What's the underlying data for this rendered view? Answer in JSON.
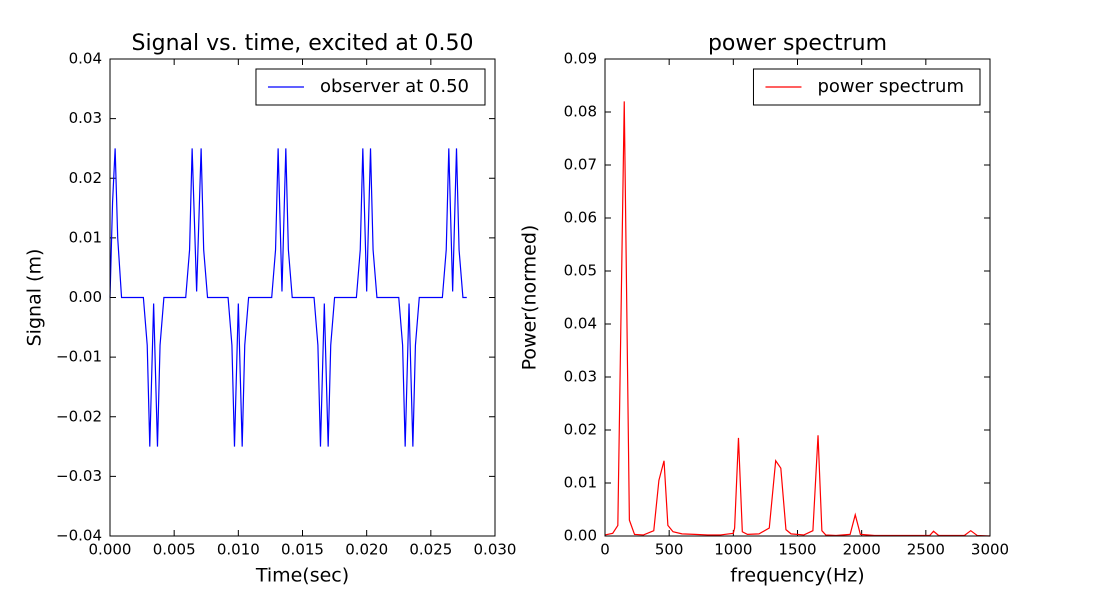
{
  "chart_data": [
    {
      "type": "line",
      "title": "Signal vs. time, excited at 0.50",
      "xlabel": "Time(sec)",
      "ylabel": "Signal (m)",
      "x": [
        0,
        0.0002,
        0.0004,
        0.0006,
        0.0009,
        0.0026,
        0.0029,
        0.0031,
        0.0034,
        0.0037,
        0.0039,
        0.0042,
        0.0059,
        0.0062,
        0.0064,
        0.00675,
        0.0071,
        0.0073,
        0.0076,
        0.0092,
        0.0095,
        0.0097,
        0.01,
        0.0103,
        0.0105,
        0.0108,
        0.0126,
        0.0129,
        0.0131,
        0.0134,
        0.0137,
        0.0139,
        0.0142,
        0.0159,
        0.0162,
        0.0164,
        0.0167,
        0.017,
        0.0172,
        0.0175,
        0.0192,
        0.0195,
        0.0197,
        0.02,
        0.0203,
        0.0205,
        0.0208,
        0.0225,
        0.0228,
        0.023,
        0.0233,
        0.0236,
        0.0238,
        0.0241,
        0.0259,
        0.0262,
        0.0264,
        0.0267,
        0.027,
        0.0272,
        0.0275,
        0.0278
      ],
      "series": [
        {
          "name": "observer at 0.50",
          "color": "#0000ff",
          "values": [
            0,
            0.016,
            0.025,
            0.01,
            0,
            0,
            -0.008,
            -0.025,
            -0.001,
            -0.025,
            -0.008,
            0,
            0,
            0.008,
            0.025,
            0.001,
            0.025,
            0.008,
            0,
            0,
            -0.008,
            -0.025,
            -0.001,
            -0.025,
            -0.008,
            0,
            0,
            0.008,
            0.025,
            0.001,
            0.025,
            0.008,
            0,
            0,
            -0.008,
            -0.025,
            -0.001,
            -0.025,
            -0.008,
            0,
            0,
            0.008,
            0.025,
            0.001,
            0.025,
            0.008,
            0,
            0,
            -0.008,
            -0.025,
            -0.001,
            -0.025,
            -0.008,
            0,
            0,
            0.008,
            0.025,
            0.001,
            0.025,
            0.008,
            0,
            0
          ]
        }
      ],
      "xlim": [
        0,
        0.03
      ],
      "xticks": [
        {
          "value": 0,
          "label": "0.000"
        },
        {
          "value": 0.005,
          "label": "0.005"
        },
        {
          "value": 0.01,
          "label": "0.010"
        },
        {
          "value": 0.015,
          "label": "0.015"
        },
        {
          "value": 0.02,
          "label": "0.020"
        },
        {
          "value": 0.025,
          "label": "0.025"
        },
        {
          "value": 0.03,
          "label": "0.030"
        }
      ],
      "ylim": [
        -0.04,
        0.04
      ],
      "yticks": [
        {
          "value": -0.04,
          "label": "−0.04"
        },
        {
          "value": -0.03,
          "label": "−0.03"
        },
        {
          "value": -0.02,
          "label": "−0.02"
        },
        {
          "value": -0.01,
          "label": "−0.01"
        },
        {
          "value": 0,
          "label": "0.00"
        },
        {
          "value": 0.01,
          "label": "0.01"
        },
        {
          "value": 0.02,
          "label": "0.02"
        },
        {
          "value": 0.03,
          "label": "0.03"
        },
        {
          "value": 0.04,
          "label": "0.04"
        }
      ],
      "legend": "upper right"
    },
    {
      "type": "line",
      "title": "power spectrum",
      "xlabel": "frequency(Hz)",
      "ylabel": "Power(normed)",
      "x": [
        0,
        60,
        100,
        150,
        190,
        230,
        300,
        380,
        420,
        460,
        490,
        530,
        600,
        700,
        800,
        900,
        1000,
        1010,
        1040,
        1070,
        1110,
        1200,
        1280,
        1330,
        1370,
        1410,
        1450,
        1550,
        1620,
        1660,
        1690,
        1720,
        1800,
        1910,
        1950,
        1990,
        2100,
        2500,
        2530,
        2560,
        2600,
        2800,
        2850,
        2900,
        3000
      ],
      "series": [
        {
          "name": "power spectrum",
          "color": "#ff0000",
          "values": [
            0.0002,
            0.0005,
            0.002,
            0.082,
            0.003,
            0.0003,
            0.0002,
            0.001,
            0.0105,
            0.0142,
            0.002,
            0.0008,
            0.0004,
            0.0003,
            0.0002,
            0.0002,
            0.0005,
            0.0015,
            0.0185,
            0.0008,
            0.0003,
            0.0004,
            0.0015,
            0.0142,
            0.0128,
            0.0012,
            0.0004,
            0.0002,
            0.001,
            0.019,
            0.001,
            0.0002,
            0.0001,
            0.0003,
            0.004,
            0.0003,
            0.0001,
            0.0001,
            0.0001,
            0.0009,
            0.0001,
            0.0001,
            0.001,
            0.0001,
            0
          ]
        }
      ],
      "xlim": [
        0,
        3000
      ],
      "xticks": [
        0,
        500,
        1000,
        1500,
        2000,
        2500,
        3000
      ],
      "ylim": [
        0,
        0.09
      ],
      "yticks": [
        {
          "value": 0,
          "label": "0.00"
        },
        {
          "value": 0.01,
          "label": "0.01"
        },
        {
          "value": 0.02,
          "label": "0.02"
        },
        {
          "value": 0.03,
          "label": "0.03"
        },
        {
          "value": 0.04,
          "label": "0.04"
        },
        {
          "value": 0.05,
          "label": "0.05"
        },
        {
          "value": 0.06,
          "label": "0.06"
        },
        {
          "value": 0.07,
          "label": "0.07"
        },
        {
          "value": 0.08,
          "label": "0.08"
        },
        {
          "value": 0.09,
          "label": "0.09"
        }
      ],
      "legend": "upper right"
    }
  ]
}
